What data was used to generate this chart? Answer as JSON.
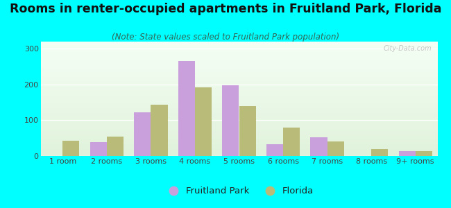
{
  "title": "Rooms in renter-occupied apartments in Fruitland Park, Florida",
  "subtitle": "(Note: State values scaled to Fruitland Park population)",
  "categories": [
    "1 room",
    "2 rooms",
    "3 rooms",
    "4 rooms",
    "5 rooms",
    "6 rooms",
    "7 rooms",
    "8 rooms",
    "9+ rooms"
  ],
  "fruitland_park": [
    0,
    38,
    122,
    265,
    197,
    33,
    52,
    0,
    14
  ],
  "florida": [
    42,
    55,
    143,
    192,
    140,
    80,
    40,
    20,
    13
  ],
  "fruitland_color": "#c9a0dc",
  "florida_color": "#b8bc78",
  "background_color": "#00ffff",
  "ylim": [
    0,
    320
  ],
  "yticks": [
    0,
    100,
    200,
    300
  ],
  "bar_width": 0.38,
  "legend_fp_label": "Fruitland Park",
  "legend_fl_label": "Florida",
  "title_fontsize": 12.5,
  "subtitle_fontsize": 8.5,
  "tick_fontsize": 8,
  "legend_fontsize": 9.5
}
